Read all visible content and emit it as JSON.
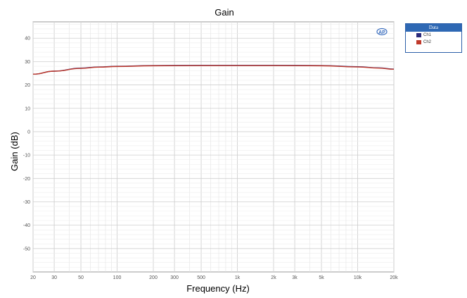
{
  "chart_data": {
    "type": "line",
    "title": "Gain",
    "xlabel": "Frequency (Hz)",
    "ylabel": "Gain (dB)",
    "xscale": "log",
    "xlim": [
      20,
      20000
    ],
    "ylim": [
      -60,
      47
    ],
    "grid": true,
    "legend_position": "outside-top-right",
    "x_ticks": [
      {
        "value": 20,
        "label": "20"
      },
      {
        "value": 30,
        "label": "30"
      },
      {
        "value": 50,
        "label": "50"
      },
      {
        "value": 100,
        "label": "100"
      },
      {
        "value": 200,
        "label": "200"
      },
      {
        "value": 300,
        "label": "300"
      },
      {
        "value": 500,
        "label": "500"
      },
      {
        "value": 1000,
        "label": "1k"
      },
      {
        "value": 2000,
        "label": "2k"
      },
      {
        "value": 3000,
        "label": "3k"
      },
      {
        "value": 5000,
        "label": "5k"
      },
      {
        "value": 10000,
        "label": "10k"
      },
      {
        "value": 20000,
        "label": "20k"
      }
    ],
    "y_ticks": [
      40,
      30,
      20,
      10,
      0,
      -10,
      -20,
      -30,
      -40,
      -50
    ],
    "legend": {
      "title": "Data"
    },
    "series": [
      {
        "name": "Ch1",
        "color": "#2a2a7a",
        "x": [
          20,
          30,
          50,
          70,
          100,
          200,
          500,
          1000,
          2000,
          5000,
          10000,
          15000,
          20000
        ],
        "y": [
          24.6,
          25.9,
          27.2,
          27.7,
          28.0,
          28.3,
          28.4,
          28.4,
          28.4,
          28.3,
          27.8,
          27.3,
          26.8
        ]
      },
      {
        "name": "Ch2",
        "color": "#c0392b",
        "x": [
          20,
          30,
          50,
          70,
          100,
          200,
          500,
          1000,
          2000,
          5000,
          10000,
          15000,
          20000
        ],
        "y": [
          24.6,
          25.9,
          27.1,
          27.6,
          27.9,
          28.2,
          28.3,
          28.3,
          28.3,
          28.2,
          27.7,
          27.2,
          26.7
        ]
      }
    ]
  }
}
